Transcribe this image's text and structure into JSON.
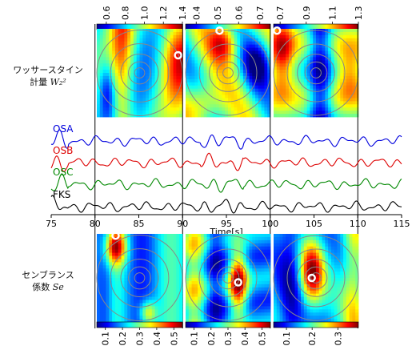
{
  "labels": {
    "wasserstein_jp": "ワッサースタイン",
    "wasserstein_jp2": "計量",
    "wasserstein_symbol": "W₂²",
    "semblance_jp": "センブランス",
    "semblance_jp2": "係数",
    "semblance_symbol": "Se"
  },
  "chart_data": [
    {
      "type": "line",
      "xlabel": "Time[s]",
      "xlim": [
        75,
        115
      ],
      "xticks": [
        75,
        80,
        85,
        90,
        95,
        100,
        105,
        110,
        115
      ],
      "window_boundaries": [
        80,
        90,
        100,
        110
      ],
      "series": [
        {
          "name": "OSA",
          "color": "#0000dd"
        },
        {
          "name": "OSB",
          "color": "#dd0000"
        },
        {
          "name": "OSC",
          "color": "#008800"
        },
        {
          "name": "FKS",
          "color": "#000000"
        }
      ]
    },
    {
      "type": "heatmap",
      "group": "wasserstein",
      "panels": [
        {
          "window": [
            80,
            90
          ],
          "colorbar_ticks": [
            "0.6",
            "0.8",
            "1.0",
            "1.2",
            "1.4"
          ],
          "cmin": 0.5,
          "cmax": 1.4,
          "marker": [
            0.95,
            0.3
          ]
        },
        {
          "window": [
            90,
            100
          ],
          "colorbar_ticks": [
            "0.4",
            "0.5",
            "0.6",
            "0.7"
          ],
          "cmin": 0.35,
          "cmax": 0.75,
          "marker": [
            0.4,
            0.02
          ]
        },
        {
          "window": [
            100,
            110
          ],
          "colorbar_ticks": [
            "0.7",
            "0.9",
            "1.1",
            "1.3"
          ],
          "cmin": 0.65,
          "cmax": 1.3,
          "marker": [
            0.04,
            0.02
          ]
        }
      ]
    },
    {
      "type": "heatmap",
      "group": "semblance",
      "panels": [
        {
          "window": [
            80,
            90
          ],
          "colorbar_ticks": [
            "0.1",
            "0.2",
            "0.3",
            "0.4",
            "0.5"
          ],
          "cmin": 0.05,
          "cmax": 0.55,
          "marker": [
            0.22,
            0.02
          ]
        },
        {
          "window": [
            90,
            100
          ],
          "colorbar_ticks": [
            "0.1",
            "0.2",
            "0.3",
            "0.4",
            "0.5"
          ],
          "cmin": 0.05,
          "cmax": 0.55,
          "marker": [
            0.62,
            0.55
          ]
        },
        {
          "window": [
            100,
            110
          ],
          "colorbar_ticks": [
            "0.1",
            "0.2",
            "0.3"
          ],
          "cmin": 0.05,
          "cmax": 0.38,
          "marker": [
            0.45,
            0.5
          ]
        }
      ]
    }
  ]
}
